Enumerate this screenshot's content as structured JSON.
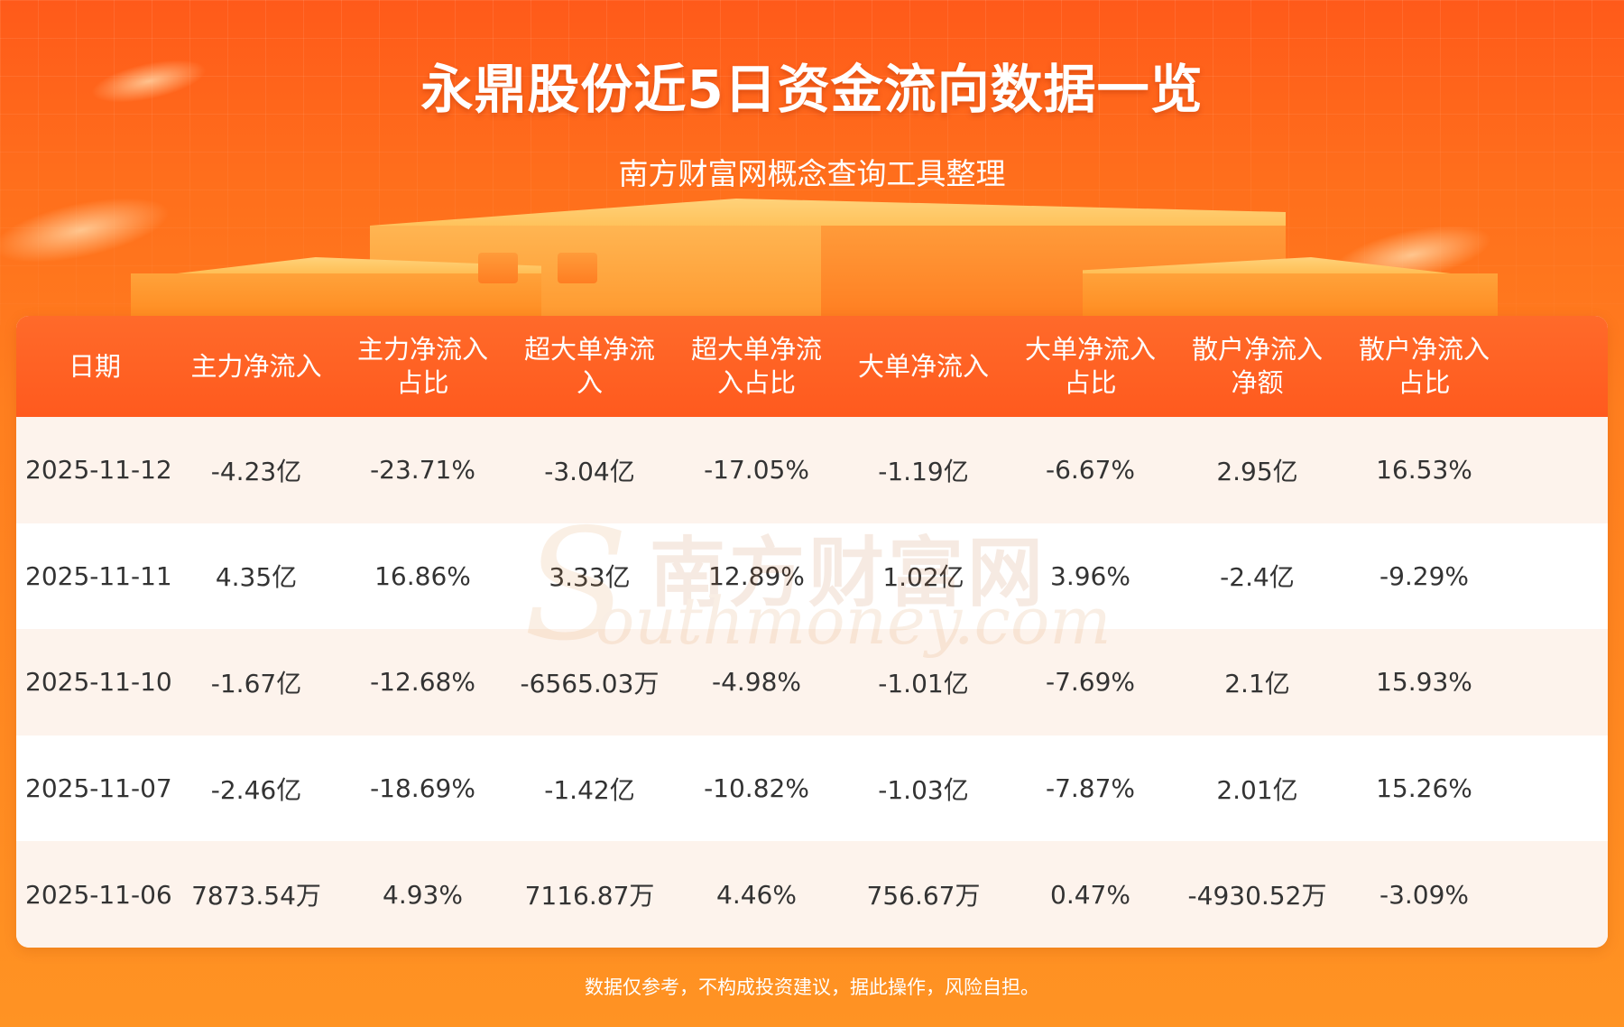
{
  "header": {
    "title": "永鼎股份近5日资金流向数据一览",
    "subtitle": "南方财富网概念查询工具整理"
  },
  "table": {
    "columns": [
      {
        "line1": "日期",
        "line2": ""
      },
      {
        "line1": "主力净流入",
        "line2": ""
      },
      {
        "line1": "主力净流入",
        "line2": "占比"
      },
      {
        "line1": "超大单净流",
        "line2": "入"
      },
      {
        "line1": "超大单净流",
        "line2": "入占比"
      },
      {
        "line1": "大单净流入",
        "line2": ""
      },
      {
        "line1": "大单净流入",
        "line2": "占比"
      },
      {
        "line1": "散户净流入",
        "line2": "净额"
      },
      {
        "line1": "散户净流入",
        "line2": "占比"
      }
    ],
    "rows": [
      [
        "2025-11-12",
        "-4.23亿",
        "-23.71%",
        "-3.04亿",
        "-17.05%",
        "-1.19亿",
        "-6.67%",
        "2.95亿",
        "16.53%"
      ],
      [
        "2025-11-11",
        "4.35亿",
        "16.86%",
        "3.33亿",
        "12.89%",
        "1.02亿",
        "3.96%",
        "-2.4亿",
        "-9.29%"
      ],
      [
        "2025-11-10",
        "-1.67亿",
        "-12.68%",
        "-6565.03万",
        "-4.98%",
        "-1.01亿",
        "-7.69%",
        "2.1亿",
        "15.93%"
      ],
      [
        "2025-11-07",
        "-2.46亿",
        "-18.69%",
        "-1.42亿",
        "-10.82%",
        "-1.03亿",
        "-7.87%",
        "2.01亿",
        "15.26%"
      ],
      [
        "2025-11-06",
        "7873.54万",
        "4.93%",
        "7116.87万",
        "4.46%",
        "756.67万",
        "0.47%",
        "-4930.52万",
        "-3.09%"
      ]
    ]
  },
  "watermark": {
    "cn": "南方财富网",
    "en": "outhmoney.com",
    "s": "S"
  },
  "footer": {
    "disclaimer": "数据仅参考，不构成投资建议，据此操作，风险自担。"
  },
  "colors": {
    "background_top": "#ff5a1a",
    "background_bottom": "#ff9323",
    "table_header": "#ff5f22",
    "row_alt": "#fdf3ec",
    "text": "#333333"
  }
}
